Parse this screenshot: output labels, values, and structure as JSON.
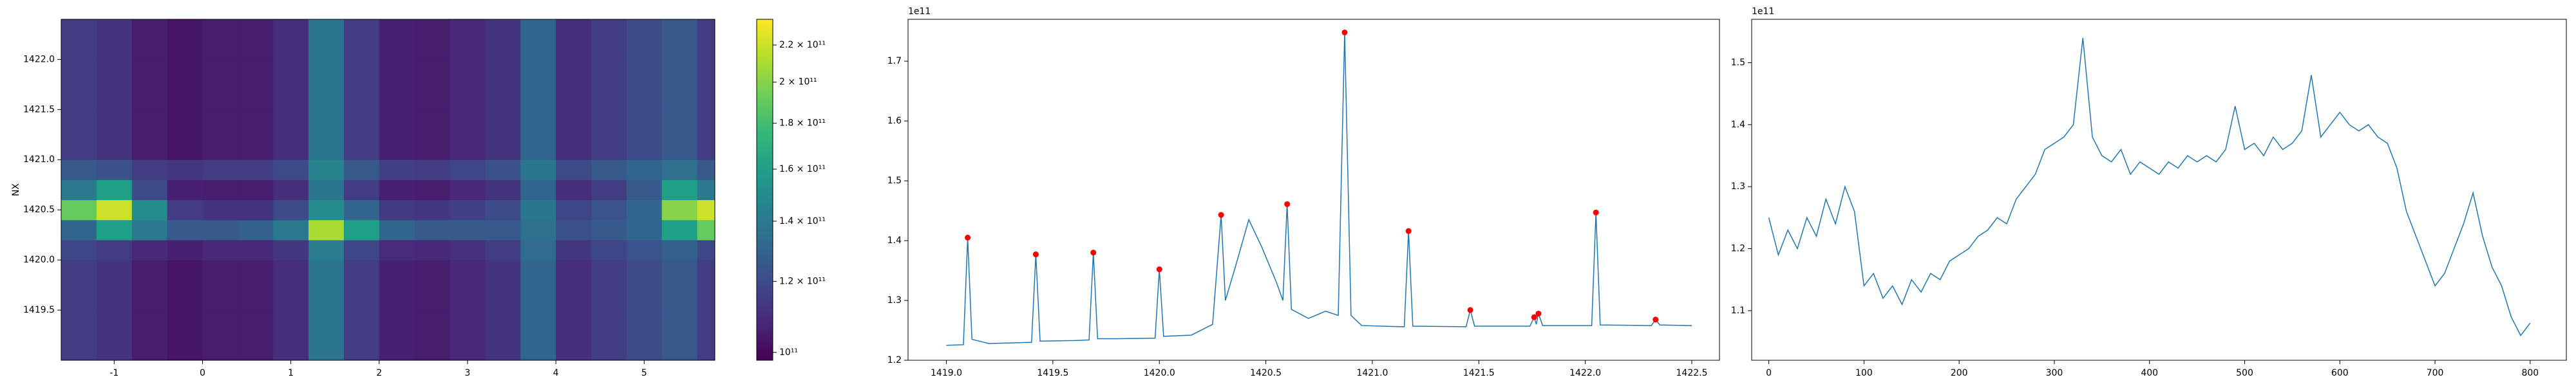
{
  "chart_data": [
    {
      "type": "heatmap",
      "ylabel": "NX",
      "colormap": "viridis",
      "color_scale": "log",
      "x_edges": [
        -1.6,
        -1.2,
        -0.8,
        -0.4,
        0,
        0.4,
        0.8,
        1.2,
        1.6,
        2.0,
        2.4,
        2.8,
        3.2,
        3.6,
        4.0,
        4.4,
        4.8,
        5.2,
        5.6,
        5.8
      ],
      "y_edges": [
        1419.0,
        1419.5,
        1420.0,
        1420.2,
        1420.4,
        1420.6,
        1420.8,
        1421.0,
        1421.5,
        1422.0,
        1422.4
      ],
      "z": [
        [
          115000000000.0,
          112000000000.0,
          105000000000.0,
          103000000000.0,
          105000000000.0,
          105000000000.0,
          110000000000.0,
          138000000000.0,
          115000000000.0,
          106000000000.0,
          105000000000.0,
          108000000000.0,
          112000000000.0,
          130000000000.0,
          110000000000.0,
          115000000000.0,
          120000000000.0,
          125000000000.0,
          115000000000.0
        ],
        [
          115000000000.0,
          112000000000.0,
          105000000000.0,
          103000000000.0,
          105000000000.0,
          105000000000.0,
          110000000000.0,
          138000000000.0,
          115000000000.0,
          106000000000.0,
          105000000000.0,
          108000000000.0,
          112000000000.0,
          130000000000.0,
          110000000000.0,
          115000000000.0,
          120000000000.0,
          125000000000.0,
          115000000000.0
        ],
        [
          118000000000.0,
          115000000000.0,
          108000000000.0,
          106000000000.0,
          108000000000.0,
          108000000000.0,
          113000000000.0,
          141000000000.0,
          118000000000.0,
          109000000000.0,
          108000000000.0,
          111000000000.0,
          115000000000.0,
          133000000000.0,
          113000000000.0,
          118000000000.0,
          123000000000.0,
          128000000000.0,
          118000000000.0
        ],
        [
          130000000000.0,
          160000000000.0,
          140000000000.0,
          125000000000.0,
          125000000000.0,
          128000000000.0,
          140000000000.0,
          210000000000.0,
          160000000000.0,
          130000000000.0,
          125000000000.0,
          125000000000.0,
          125000000000.0,
          135000000000.0,
          122000000000.0,
          125000000000.0,
          130000000000.0,
          160000000000.0,
          190000000000.0
        ],
        [
          190000000000.0,
          220000000000.0,
          150000000000.0,
          115000000000.0,
          112000000000.0,
          112000000000.0,
          120000000000.0,
          150000000000.0,
          130000000000.0,
          114000000000.0,
          113000000000.0,
          116000000000.0,
          120000000000.0,
          138000000000.0,
          118000000000.0,
          123000000000.0,
          130000000000.0,
          200000000000.0,
          220000000000.0
        ],
        [
          140000000000.0,
          160000000000.0,
          120000000000.0,
          106000000000.0,
          105000000000.0,
          105000000000.0,
          110000000000.0,
          138000000000.0,
          115000000000.0,
          106000000000.0,
          105000000000.0,
          108000000000.0,
          112000000000.0,
          130000000000.0,
          110000000000.0,
          115000000000.0,
          125000000000.0,
          160000000000.0,
          140000000000.0
        ],
        [
          125000000000.0,
          122000000000.0,
          115000000000.0,
          113000000000.0,
          115000000000.0,
          115000000000.0,
          120000000000.0,
          145000000000.0,
          125000000000.0,
          116000000000.0,
          115000000000.0,
          118000000000.0,
          122000000000.0,
          138000000000.0,
          120000000000.0,
          125000000000.0,
          130000000000.0,
          135000000000.0,
          125000000000.0
        ],
        [
          115000000000.0,
          112000000000.0,
          105000000000.0,
          103000000000.0,
          105000000000.0,
          105000000000.0,
          110000000000.0,
          138000000000.0,
          115000000000.0,
          106000000000.0,
          105000000000.0,
          108000000000.0,
          112000000000.0,
          130000000000.0,
          110000000000.0,
          115000000000.0,
          120000000000.0,
          125000000000.0,
          115000000000.0
        ],
        [
          115000000000.0,
          112000000000.0,
          105000000000.0,
          103000000000.0,
          105000000000.0,
          105000000000.0,
          110000000000.0,
          138000000000.0,
          115000000000.0,
          106000000000.0,
          105000000000.0,
          108000000000.0,
          112000000000.0,
          130000000000.0,
          110000000000.0,
          115000000000.0,
          120000000000.0,
          125000000000.0,
          115000000000.0
        ],
        [
          115000000000.0,
          112000000000.0,
          105000000000.0,
          103000000000.0,
          105000000000.0,
          105000000000.0,
          110000000000.0,
          138000000000.0,
          115000000000.0,
          106000000000.0,
          105000000000.0,
          108000000000.0,
          112000000000.0,
          130000000000.0,
          110000000000.0,
          115000000000.0,
          120000000000.0,
          125000000000.0,
          115000000000.0
        ]
      ],
      "xlim": [
        -1.6,
        5.8
      ],
      "ylim": [
        1419.0,
        1422.4
      ],
      "xticks": [
        -1,
        0,
        1,
        2,
        3,
        4,
        5
      ],
      "yticks": [
        1419.5,
        {
          "value": 1420,
          "label": "1420.0"
        },
        1420.5,
        {
          "value": 1421,
          "label": "1421.0"
        },
        1421.5,
        {
          "value": 1422,
          "label": "1422.0"
        }
      ],
      "clim": [
        98000000000.0,
        235000000000.0
      ],
      "cticks": [
        {
          "value": 100000000000.0,
          "label": "10¹¹"
        },
        {
          "value": 120000000000.0,
          "label": "1.2 × 10¹¹"
        },
        {
          "value": 140000000000.0,
          "label": "1.4 × 10¹¹"
        },
        {
          "value": 160000000000.0,
          "label": "1.6 × 10¹¹"
        },
        {
          "value": 180000000000.0,
          "label": "1.8 × 10¹¹"
        },
        {
          "value": 200000000000.0,
          "label": "2 × 10¹¹"
        },
        {
          "value": 220000000000.0,
          "label": "2.2 × 10¹¹"
        }
      ]
    },
    {
      "type": "line",
      "offset_text": "1e11",
      "color": "#1f77b4",
      "x": [
        1419.0,
        1419.08,
        1419.1,
        1419.12,
        1419.2,
        1419.4,
        1419.42,
        1419.44,
        1419.6,
        1419.67,
        1419.69,
        1419.71,
        1419.8,
        1419.98,
        1420.0,
        1420.02,
        1420.15,
        1420.25,
        1420.29,
        1420.31,
        1420.36,
        1420.42,
        1420.48,
        1420.55,
        1420.58,
        1420.6,
        1420.62,
        1420.7,
        1420.78,
        1420.84,
        1420.87,
        1420.9,
        1420.95,
        1421.15,
        1421.17,
        1421.19,
        1421.44,
        1421.46,
        1421.48,
        1421.74,
        1421.76,
        1421.77,
        1421.78,
        1421.8,
        1422.03,
        1422.05,
        1422.07,
        1422.31,
        1422.33,
        1422.35,
        1422.5
      ],
      "values": [
        1.225,
        1.226,
        1.405,
        1.235,
        1.228,
        1.23,
        1.377,
        1.232,
        1.233,
        1.234,
        1.38,
        1.236,
        1.236,
        1.237,
        1.352,
        1.24,
        1.242,
        1.26,
        1.443,
        1.3,
        1.36,
        1.435,
        1.39,
        1.33,
        1.3,
        1.461,
        1.285,
        1.27,
        1.282,
        1.275,
        1.748,
        1.275,
        1.258,
        1.256,
        1.416,
        1.257,
        1.256,
        1.284,
        1.257,
        1.257,
        1.272,
        1.26,
        1.278,
        1.258,
        1.258,
        1.447,
        1.259,
        1.258,
        1.268,
        1.259,
        1.258
      ],
      "peaks": {
        "color": "red",
        "x": [
          1419.1,
          1419.42,
          1419.69,
          1420.0,
          1420.29,
          1420.6,
          1420.87,
          1421.17,
          1421.46,
          1421.76,
          1421.78,
          1422.05,
          1422.33
        ],
        "values": [
          1.405,
          1.377,
          1.38,
          1.352,
          1.443,
          1.461,
          1.748,
          1.416,
          1.284,
          1.272,
          1.278,
          1.447,
          1.268
        ]
      },
      "xlim": [
        1418.82,
        1422.63
      ],
      "ylim": [
        1.2,
        1.77
      ],
      "xticks": [
        {
          "value": 1419,
          "label": "1419.0"
        },
        1419.5,
        {
          "value": 1420,
          "label": "1420.0"
        },
        1420.5,
        {
          "value": 1421,
          "label": "1421.0"
        },
        1421.5,
        {
          "value": 1422,
          "label": "1422.0"
        },
        1422.5
      ],
      "yticks": [
        1.2,
        1.3,
        1.4,
        1.5,
        1.6,
        1.7
      ]
    },
    {
      "type": "line",
      "offset_text": "1e11",
      "color": "#1f77b4",
      "x": [
        0,
        10,
        20,
        30,
        40,
        50,
        60,
        70,
        80,
        90,
        100,
        110,
        120,
        130,
        140,
        150,
        160,
        170,
        180,
        190,
        200,
        210,
        220,
        230,
        240,
        250,
        260,
        270,
        280,
        290,
        300,
        310,
        320,
        330,
        340,
        350,
        360,
        370,
        380,
        390,
        400,
        410,
        420,
        430,
        440,
        450,
        460,
        470,
        480,
        490,
        500,
        510,
        520,
        530,
        540,
        550,
        560,
        570,
        580,
        590,
        600,
        610,
        620,
        630,
        640,
        650,
        660,
        670,
        680,
        690,
        700,
        710,
        720,
        730,
        740,
        750,
        760,
        770,
        780,
        790,
        800
      ],
      "values": [
        1.25,
        1.19,
        1.23,
        1.2,
        1.25,
        1.22,
        1.28,
        1.24,
        1.3,
        1.26,
        1.14,
        1.16,
        1.12,
        1.14,
        1.11,
        1.15,
        1.13,
        1.16,
        1.15,
        1.18,
        1.19,
        1.2,
        1.22,
        1.23,
        1.25,
        1.24,
        1.28,
        1.3,
        1.32,
        1.36,
        1.37,
        1.38,
        1.4,
        1.54,
        1.38,
        1.35,
        1.34,
        1.36,
        1.32,
        1.34,
        1.33,
        1.32,
        1.34,
        1.33,
        1.35,
        1.34,
        1.35,
        1.34,
        1.36,
        1.43,
        1.36,
        1.37,
        1.35,
        1.38,
        1.36,
        1.37,
        1.39,
        1.48,
        1.38,
        1.4,
        1.42,
        1.4,
        1.39,
        1.4,
        1.38,
        1.37,
        1.33,
        1.26,
        1.22,
        1.18,
        1.14,
        1.16,
        1.2,
        1.24,
        1.29,
        1.22,
        1.17,
        1.14,
        1.09,
        1.06,
        1.08
      ],
      "xlim": [
        -18,
        838
      ],
      "ylim": [
        1.02,
        1.57
      ],
      "xticks": [
        0,
        100,
        200,
        300,
        400,
        500,
        600,
        700,
        800
      ],
      "yticks": [
        1.1,
        1.2,
        1.3,
        1.4,
        1.5
      ]
    }
  ]
}
